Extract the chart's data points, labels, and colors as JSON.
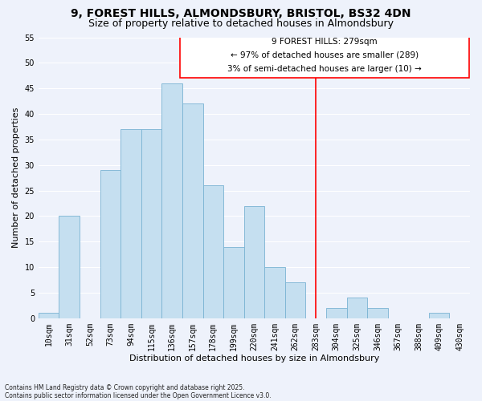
{
  "title": "9, FOREST HILLS, ALMONDSBURY, BRISTOL, BS32 4DN",
  "subtitle": "Size of property relative to detached houses in Almondsbury",
  "xlabel": "Distribution of detached houses by size in Almondsbury",
  "ylabel": "Number of detached properties",
  "bar_labels": [
    "10sqm",
    "31sqm",
    "52sqm",
    "73sqm",
    "94sqm",
    "115sqm",
    "136sqm",
    "157sqm",
    "178sqm",
    "199sqm",
    "220sqm",
    "241sqm",
    "262sqm",
    "283sqm",
    "304sqm",
    "325sqm",
    "346sqm",
    "367sqm",
    "388sqm",
    "409sqm",
    "430sqm"
  ],
  "bar_values": [
    1,
    20,
    0,
    29,
    37,
    37,
    46,
    42,
    26,
    14,
    22,
    10,
    7,
    0,
    2,
    4,
    2,
    0,
    0,
    1,
    0
  ],
  "bar_color": "#c5dff0",
  "bar_edge_color": "#7ab3d3",
  "ylim": [
    0,
    55
  ],
  "yticks": [
    0,
    5,
    10,
    15,
    20,
    25,
    30,
    35,
    40,
    45,
    50,
    55
  ],
  "marker_label": "9 FOREST HILLS: 279sqm",
  "annotation_line1": "← 97% of detached houses are smaller (289)",
  "annotation_line2": "3% of semi-detached houses are larger (10) →",
  "vline_x": 13.0,
  "footnote1": "Contains HM Land Registry data © Crown copyright and database right 2025.",
  "footnote2": "Contains public sector information licensed under the Open Government Licence v3.0.",
  "background_color": "#eef2fb",
  "grid_color": "#ffffff",
  "title_fontsize": 10,
  "subtitle_fontsize": 9,
  "axis_label_fontsize": 8,
  "tick_fontsize": 7,
  "annot_fontsize": 7.5,
  "footnote_fontsize": 5.5
}
